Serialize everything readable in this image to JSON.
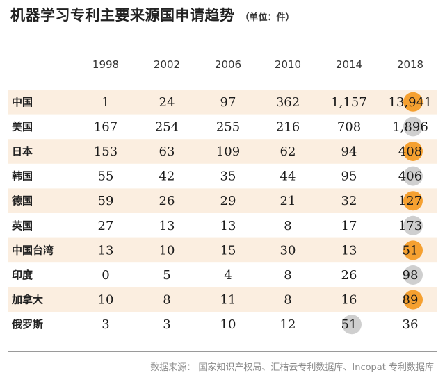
{
  "title": "机器学习专利主要来源国申请趋势",
  "unit_note": "（单位：件）",
  "source_note": "数据来源： 国家知识产权局、汇桔云专利数据库、Incopat 专利数据库",
  "colors": {
    "band": "#fbeee0",
    "orange_marker": "#f5a030",
    "gray_marker": "#cfcfcf"
  },
  "chart_data": {
    "type": "table",
    "columns": [
      "1998",
      "2002",
      "2006",
      "2010",
      "2014",
      "2018"
    ],
    "rows": [
      {
        "country": "中国",
        "values": [
          "1",
          "24",
          "97",
          "362",
          "1,157",
          "13,941"
        ],
        "highlight": {
          "col": 5,
          "color": "orange"
        }
      },
      {
        "country": "美国",
        "values": [
          "167",
          "254",
          "255",
          "216",
          "708",
          "1,896"
        ],
        "highlight": {
          "col": 5,
          "color": "gray"
        }
      },
      {
        "country": "日本",
        "values": [
          "153",
          "63",
          "109",
          "62",
          "94",
          "408"
        ],
        "highlight": {
          "col": 5,
          "color": "orange"
        }
      },
      {
        "country": "韩国",
        "values": [
          "55",
          "42",
          "35",
          "44",
          "95",
          "406"
        ],
        "highlight": {
          "col": 5,
          "color": "gray"
        }
      },
      {
        "country": "德国",
        "values": [
          "59",
          "26",
          "29",
          "21",
          "32",
          "127"
        ],
        "highlight": {
          "col": 5,
          "color": "orange"
        }
      },
      {
        "country": "英国",
        "values": [
          "27",
          "13",
          "13",
          "8",
          "17",
          "173"
        ],
        "highlight": {
          "col": 5,
          "color": "gray"
        }
      },
      {
        "country": "中国台湾",
        "values": [
          "13",
          "10",
          "15",
          "30",
          "13",
          "51"
        ],
        "highlight": {
          "col": 5,
          "color": "orange"
        }
      },
      {
        "country": "印度",
        "values": [
          "0",
          "5",
          "4",
          "8",
          "26",
          "98"
        ],
        "highlight": {
          "col": 5,
          "color": "gray"
        }
      },
      {
        "country": "加拿大",
        "values": [
          "10",
          "8",
          "11",
          "8",
          "16",
          "89"
        ],
        "highlight": {
          "col": 5,
          "color": "orange"
        }
      },
      {
        "country": "俄罗斯",
        "values": [
          "3",
          "3",
          "10",
          "12",
          "51",
          "36"
        ],
        "highlight": {
          "col": 4,
          "color": "gray"
        }
      }
    ]
  }
}
